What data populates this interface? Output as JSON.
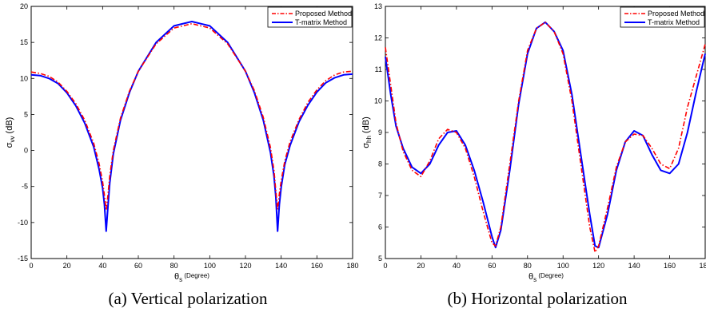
{
  "chart_data": [
    {
      "type": "line",
      "caption": "(a) Vertical polarization",
      "xlabel": {
        "symbol": "θ",
        "sub": "s",
        "text": " (Degree)"
      },
      "ylabel": {
        "symbol": "σ",
        "sub": "vv",
        "text": " (dB)"
      },
      "xlim": [
        0,
        180
      ],
      "ylim": [
        -15,
        20
      ],
      "xticks": [
        0,
        20,
        40,
        60,
        80,
        100,
        120,
        140,
        160,
        180
      ],
      "yticks": [
        -15,
        -10,
        -5,
        0,
        5,
        10,
        15,
        20
      ],
      "grid": false,
      "legend_position": "top-right",
      "series": [
        {
          "name": "Proposed Method",
          "color": "#ff0000",
          "style": "dash-dot",
          "x": [
            0,
            5,
            10,
            15,
            20,
            25,
            30,
            35,
            38,
            40,
            41,
            42,
            43,
            44,
            46,
            50,
            55,
            60,
            70,
            80,
            90,
            100,
            110,
            120,
            125,
            130,
            134,
            136,
            137,
            138,
            139,
            140,
            142,
            145,
            150,
            155,
            160,
            165,
            170,
            175,
            180
          ],
          "y": [
            10.9,
            10.7,
            10.3,
            9.5,
            8.2,
            6.5,
            4.2,
            1.0,
            -1.8,
            -4.3,
            -6.2,
            -8.3,
            -6.2,
            -3.5,
            0.0,
            4.5,
            8.2,
            11.0,
            14.8,
            17.0,
            17.6,
            17.0,
            14.8,
            11.0,
            8.3,
            4.6,
            0.4,
            -2.8,
            -5.6,
            -8.2,
            -6.0,
            -4.2,
            -1.5,
            1.2,
            4.3,
            6.7,
            8.4,
            9.7,
            10.5,
            10.9,
            11.0
          ]
        },
        {
          "name": "T-matrix Method",
          "color": "#0000ff",
          "style": "solid",
          "x": [
            0,
            5,
            10,
            15,
            20,
            25,
            30,
            35,
            38,
            40,
            41,
            42,
            43,
            44,
            46,
            50,
            55,
            60,
            70,
            80,
            90,
            100,
            110,
            120,
            125,
            130,
            134,
            136,
            137,
            138,
            139,
            140,
            142,
            145,
            150,
            155,
            160,
            165,
            170,
            175,
            180
          ],
          "y": [
            10.5,
            10.4,
            10.0,
            9.3,
            8.0,
            6.2,
            3.8,
            0.5,
            -2.6,
            -5.2,
            -7.5,
            -11.2,
            -7.8,
            -4.5,
            -0.5,
            4.2,
            8.0,
            11.0,
            15.0,
            17.3,
            17.9,
            17.3,
            15.0,
            11.0,
            8.0,
            4.2,
            -0.3,
            -3.6,
            -6.5,
            -11.2,
            -7.5,
            -5.1,
            -2.0,
            0.7,
            4.0,
            6.3,
            8.1,
            9.4,
            10.1,
            10.5,
            10.6
          ]
        }
      ]
    },
    {
      "type": "line",
      "caption": "(b) Horizontal polarization",
      "xlabel": {
        "symbol": "θ",
        "sub": "s",
        "text": " (Degree)"
      },
      "ylabel": {
        "symbol": "σ",
        "sub": "hh",
        "text": " (dB)"
      },
      "xlim": [
        0,
        180
      ],
      "ylim": [
        5,
        13
      ],
      "xticks": [
        0,
        20,
        40,
        60,
        80,
        100,
        120,
        140,
        160,
        180
      ],
      "yticks": [
        5,
        6,
        7,
        8,
        9,
        10,
        11,
        12,
        13
      ],
      "grid": false,
      "legend_position": "top-right",
      "series": [
        {
          "name": "Proposed Method",
          "color": "#ff0000",
          "style": "dash-dot",
          "x": [
            0,
            3,
            6,
            10,
            15,
            20,
            25,
            30,
            35,
            40,
            45,
            50,
            55,
            60,
            62,
            65,
            70,
            75,
            80,
            85,
            90,
            95,
            100,
            105,
            110,
            115,
            118,
            120,
            125,
            130,
            135,
            140,
            145,
            150,
            155,
            160,
            165,
            170,
            175,
            180
          ],
          "y": [
            11.7,
            10.5,
            9.3,
            8.4,
            7.8,
            7.6,
            8.1,
            8.8,
            9.1,
            9.0,
            8.5,
            7.6,
            6.5,
            5.5,
            5.4,
            6.0,
            8.0,
            10.0,
            11.6,
            12.3,
            12.5,
            12.2,
            11.5,
            10.0,
            8.0,
            6.0,
            5.2,
            5.4,
            6.6,
            7.9,
            8.7,
            8.95,
            8.9,
            8.5,
            8.0,
            7.85,
            8.5,
            9.8,
            10.8,
            11.8
          ]
        },
        {
          "name": "T-matrix Method",
          "color": "#0000ff",
          "style": "solid",
          "x": [
            0,
            3,
            6,
            10,
            15,
            20,
            25,
            30,
            35,
            40,
            45,
            50,
            55,
            60,
            62,
            65,
            70,
            75,
            80,
            85,
            90,
            95,
            100,
            105,
            110,
            115,
            118,
            120,
            125,
            130,
            135,
            140,
            145,
            150,
            155,
            160,
            165,
            170,
            175,
            180
          ],
          "y": [
            11.4,
            10.2,
            9.2,
            8.5,
            7.9,
            7.7,
            8.0,
            8.6,
            9.0,
            9.05,
            8.6,
            7.8,
            6.8,
            5.7,
            5.35,
            5.9,
            7.8,
            9.9,
            11.5,
            12.3,
            12.5,
            12.2,
            11.6,
            10.2,
            8.3,
            6.4,
            5.4,
            5.35,
            6.4,
            7.8,
            8.7,
            9.05,
            8.9,
            8.3,
            7.8,
            7.7,
            8.0,
            9.0,
            10.3,
            11.5
          ]
        }
      ]
    }
  ]
}
